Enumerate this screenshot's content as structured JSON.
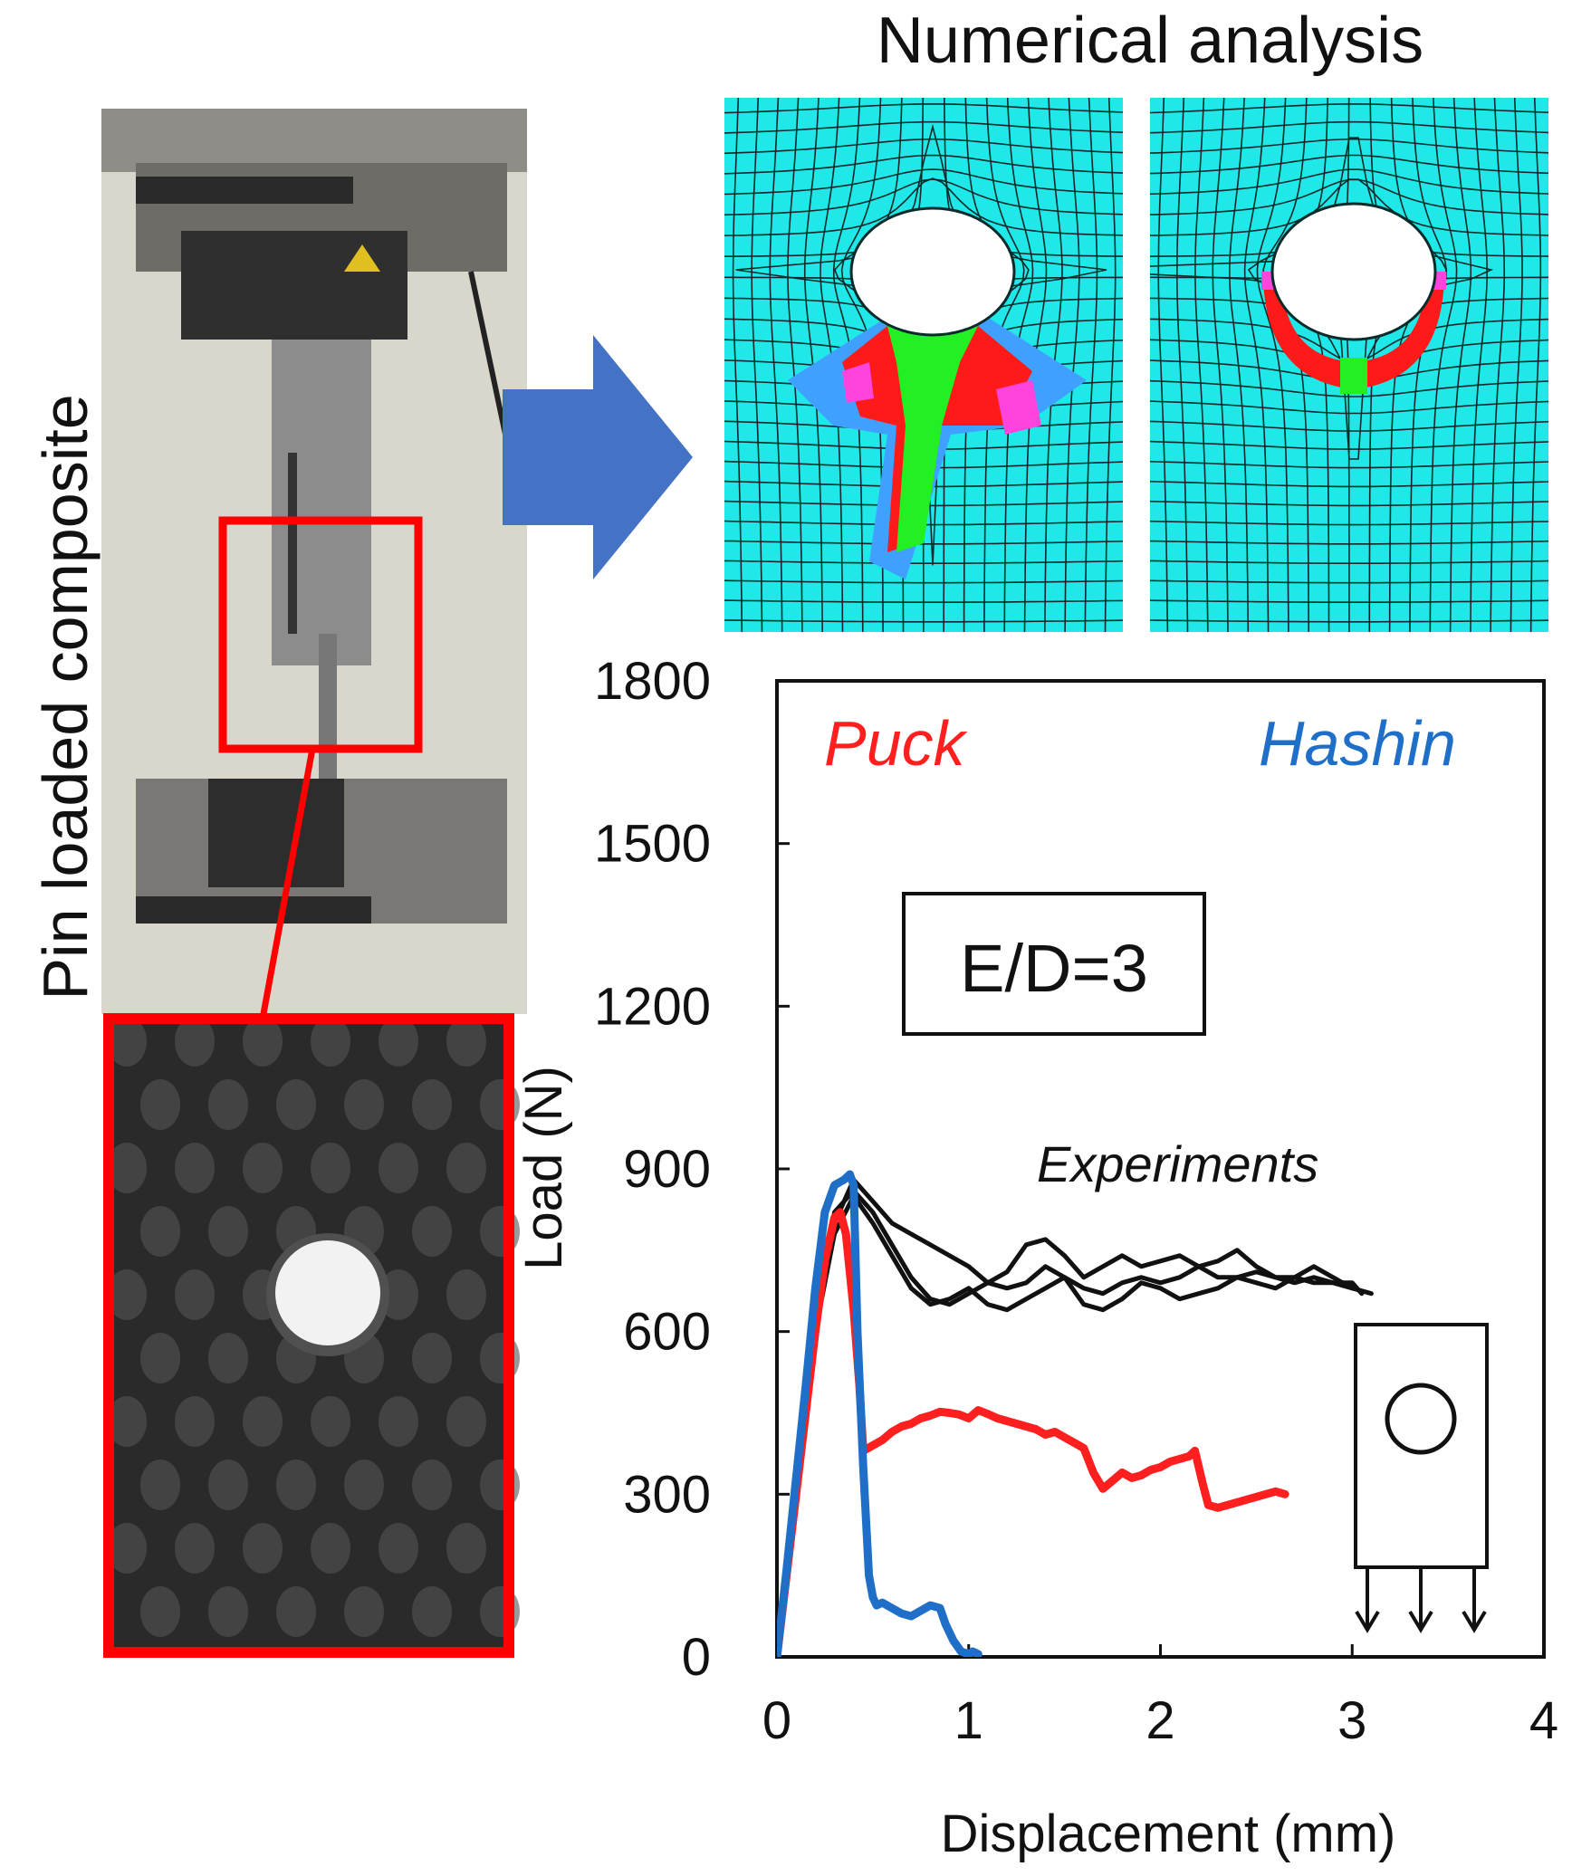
{
  "figure": {
    "left_label": "Pin loaded composite",
    "top_title": "Numerical analysis",
    "colors": {
      "mesh_background": "#20e8e8",
      "mesh_line": "#0b2a2a",
      "damage_red": "#ff1a1a",
      "damage_green": "#22f022",
      "damage_magenta": "#ff44dd",
      "damage_blue": "#3fa0ff",
      "arrow": "#4472c4",
      "photo_highlight": "#ff0000",
      "specimen_background": "#2a2a2a"
    },
    "icons": [
      "arrow-right-icon",
      "specimen-schematic-icon",
      "load-arrow-icon"
    ]
  },
  "chart_data": {
    "type": "line",
    "xlabel": "Displacement (mm)",
    "ylabel": "Load (N)",
    "xlim": [
      0,
      4
    ],
    "ylim": [
      0,
      1800
    ],
    "xticks": [
      0,
      1,
      2,
      3,
      4
    ],
    "yticks": [
      0,
      300,
      600,
      900,
      1200,
      1500,
      1800
    ],
    "grid": false,
    "annotation": "E/D=3",
    "series": [
      {
        "name": "Puck",
        "color": "#ff1f1f",
        "label_style": "italic",
        "x": [
          0,
          0.05,
          0.1,
          0.15,
          0.2,
          0.25,
          0.3,
          0.33,
          0.36,
          0.4,
          0.43,
          0.45,
          0.5,
          0.55,
          0.6,
          0.65,
          0.7,
          0.75,
          0.8,
          0.85,
          0.9,
          0.95,
          1.0,
          1.05,
          1.1,
          1.15,
          1.2,
          1.25,
          1.3,
          1.35,
          1.4,
          1.45,
          1.5,
          1.55,
          1.6,
          1.65,
          1.7,
          1.75,
          1.8,
          1.85,
          1.9,
          1.95,
          2.0,
          2.05,
          2.1,
          2.15,
          2.18,
          2.22,
          2.25,
          2.3,
          2.4,
          2.5,
          2.6,
          2.65
        ],
        "y": [
          0,
          150,
          300,
          450,
          600,
          730,
          810,
          820,
          780,
          640,
          500,
          380,
          390,
          400,
          415,
          425,
          430,
          440,
          445,
          452,
          450,
          447,
          440,
          455,
          448,
          440,
          435,
          430,
          425,
          420,
          410,
          415,
          405,
          395,
          385,
          340,
          310,
          325,
          340,
          330,
          335,
          345,
          350,
          360,
          365,
          370,
          380,
          320,
          280,
          275,
          285,
          295,
          305,
          300
        ]
      },
      {
        "name": "Hashin",
        "color": "#1f6fc8",
        "label_style": "italic",
        "x": [
          0,
          0.05,
          0.1,
          0.15,
          0.2,
          0.25,
          0.3,
          0.35,
          0.38,
          0.4,
          0.42,
          0.45,
          0.48,
          0.5,
          0.52,
          0.55,
          0.6,
          0.65,
          0.7,
          0.75,
          0.8,
          0.85,
          0.88,
          0.92,
          0.96,
          1.0,
          1.02,
          1.05
        ],
        "y": [
          0,
          160,
          330,
          500,
          680,
          820,
          870,
          880,
          890,
          870,
          600,
          350,
          150,
          110,
          95,
          100,
          90,
          80,
          75,
          85,
          95,
          90,
          60,
          30,
          10,
          5,
          10,
          5
        ]
      },
      {
        "name": "Experiments",
        "color": "#111111",
        "label_style": "italic",
        "x": [
          0,
          0.1,
          0.2,
          0.3,
          0.4,
          0.5,
          0.6,
          0.7,
          0.8,
          0.9,
          1.0,
          1.1,
          1.2,
          1.3,
          1.4,
          1.5,
          1.6,
          1.7,
          1.8,
          1.9,
          2.0,
          2.1,
          2.2,
          2.3,
          2.4,
          2.5,
          2.6,
          2.7,
          2.8,
          2.9,
          3.0,
          3.05
        ],
        "y": [
          0,
          300,
          600,
          820,
          860,
          820,
          760,
          700,
          660,
          650,
          670,
          690,
          680,
          690,
          720,
          700,
          680,
          670,
          690,
          700,
          690,
          700,
          720,
          700,
          700,
          710,
          700,
          700,
          690,
          690,
          690,
          670
        ]
      },
      {
        "name": "Experiments",
        "color": "#111111",
        "x": [
          0,
          0.1,
          0.2,
          0.3,
          0.4,
          0.5,
          0.6,
          0.7,
          0.8,
          0.9,
          1.0,
          1.1,
          1.2,
          1.3,
          1.4,
          1.5,
          1.6,
          1.7,
          1.8,
          1.9,
          2.0,
          2.1,
          2.2,
          2.3,
          2.4,
          2.5,
          2.6,
          2.7,
          2.8,
          2.9,
          3.0
        ],
        "y": [
          0,
          300,
          600,
          800,
          880,
          840,
          800,
          780,
          760,
          740,
          720,
          690,
          710,
          760,
          770,
          740,
          700,
          720,
          740,
          720,
          730,
          740,
          720,
          730,
          750,
          720,
          700,
          690,
          700,
          690,
          680
        ]
      },
      {
        "name": "Experiments",
        "color": "#111111",
        "x": [
          0,
          0.1,
          0.2,
          0.3,
          0.4,
          0.5,
          0.6,
          0.7,
          0.8,
          0.9,
          1.0,
          1.1,
          1.2,
          1.3,
          1.4,
          1.5,
          1.6,
          1.7,
          1.8,
          1.9,
          2.0,
          2.1,
          2.2,
          2.3,
          2.4,
          2.5,
          2.6,
          2.7,
          2.8,
          2.9,
          3.0,
          3.1
        ],
        "y": [
          0,
          300,
          600,
          780,
          850,
          800,
          740,
          680,
          650,
          660,
          680,
          650,
          640,
          660,
          680,
          700,
          650,
          640,
          660,
          690,
          680,
          660,
          670,
          680,
          700,
          690,
          680,
          700,
          720,
          700,
          680,
          670
        ]
      }
    ],
    "legend_labels": [
      {
        "text": "Puck",
        "color": "#ff1f1f",
        "position": "top-left"
      },
      {
        "text": "Hashin",
        "color": "#1f6fc8",
        "position": "top-right"
      },
      {
        "text": "Experiments",
        "color": "#111111",
        "position": "middle-right"
      }
    ]
  }
}
